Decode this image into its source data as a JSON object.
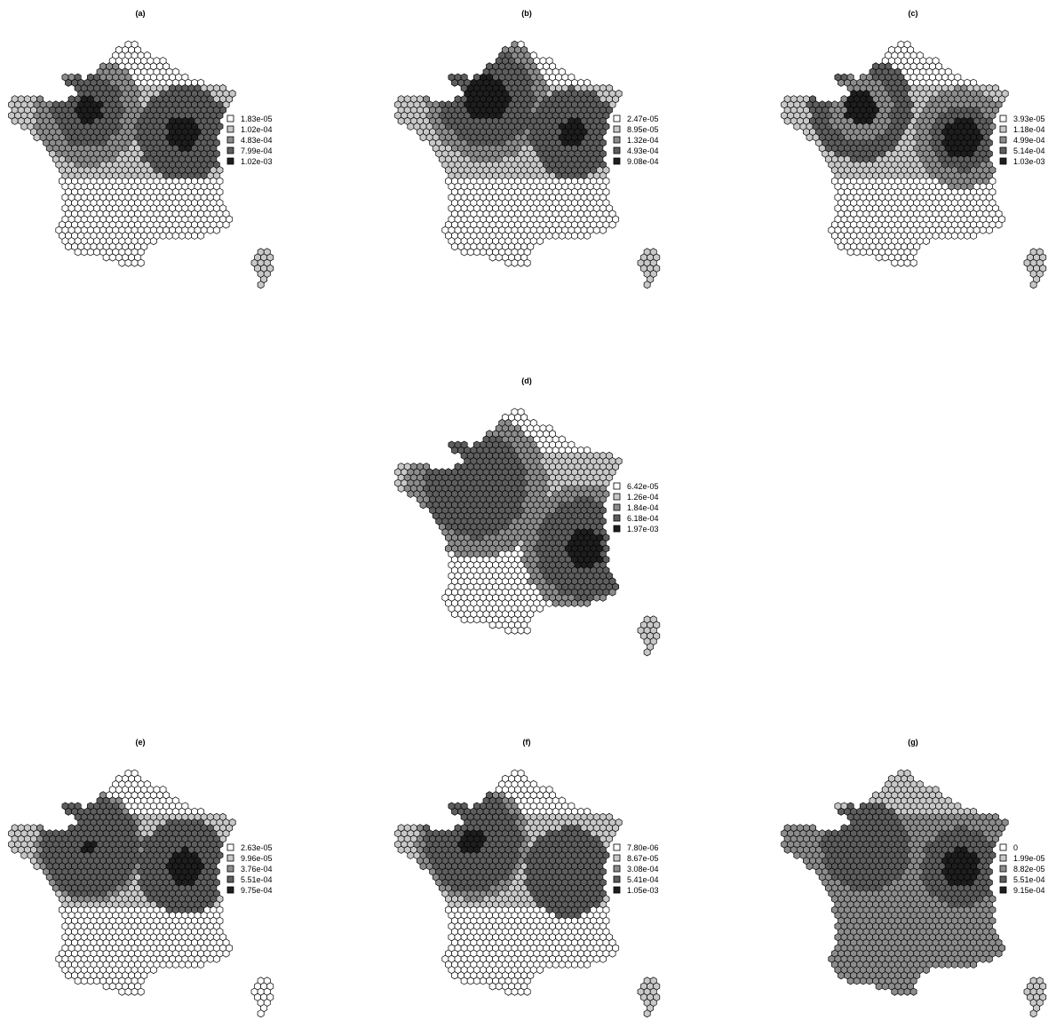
{
  "palette": {
    "class_1": "#ffffff",
    "class_2": "#c8c8c8",
    "class_3": "#8c8c8c",
    "class_4": "#5e5e5e",
    "class_5": "#1e1e1e",
    "outline": "#000000"
  },
  "panels": [
    {
      "id": "a",
      "title": "(a)",
      "legend": [
        "1.83e-05",
        "1.02e-04",
        "4.83e-04",
        "7.99e-04",
        "1.02e-03"
      ],
      "hotspots": [
        {
          "lon": 0.2,
          "lat": 46.7,
          "level": 5,
          "radius_deg": 0.55,
          "halo": [
            4,
            1.45
          ],
          "mid": [
            3,
            2.2
          ]
        },
        {
          "lon": 5.6,
          "lat": 45.8,
          "level": 5,
          "radius_deg": 0.65,
          "halo": [
            4,
            1.9
          ],
          "mid": [
            3,
            1.9
          ]
        }
      ],
      "background_level": 2,
      "north_level": 1,
      "corsica_level": 2
    },
    {
      "id": "b",
      "title": "(b)",
      "legend": [
        "2.47e-05",
        "8.95e-05",
        "1.32e-04",
        "4.93e-04",
        "9.08e-04"
      ],
      "hotspots": [
        {
          "lon": 0.9,
          "lat": 47.2,
          "level": 5,
          "radius_deg": 0.9,
          "halo": [
            4,
            1.95
          ],
          "mid": [
            3,
            2.5
          ]
        },
        {
          "lon": 5.8,
          "lat": 45.8,
          "level": 5,
          "radius_deg": 0.55,
          "halo": [
            4,
            1.8
          ],
          "mid": [
            3,
            1.8
          ]
        }
      ],
      "background_level": 2,
      "north_level": 1,
      "corsica_level": 2
    },
    {
      "id": "c",
      "title": "(c)",
      "legend": [
        "3.93e-05",
        "1.18e-04",
        "4.99e-04",
        "5.14e-04",
        "1.03e-03"
      ],
      "hotspots": [
        {
          "lon": 0.2,
          "lat": 46.8,
          "level": 5,
          "radius_deg": 0.65,
          "halo": [
            3,
            1.3
          ],
          "mid": [
            4,
            2.1
          ]
        },
        {
          "lon": 6.0,
          "lat": 45.6,
          "level": 5,
          "radius_deg": 0.8,
          "halo": [
            4,
            1.3
          ],
          "mid": [
            3,
            2.0
          ]
        }
      ],
      "background_level": 2,
      "north_level": 1,
      "corsica_level": 2
    },
    {
      "id": "d",
      "title": "(d)",
      "legend": [
        "6.42e-05",
        "1.26e-04",
        "1.84e-04",
        "6.18e-04",
        "1.97e-03"
      ],
      "hotspots": [
        {
          "lon": 6.5,
          "lat": 43.9,
          "level": 5,
          "radius_deg": 0.75,
          "halo": [
            4,
            2.0
          ],
          "mid": [
            3,
            2.6
          ]
        },
        {
          "lon": 0.3,
          "lat": 46.4,
          "level": 4,
          "radius_deg": 2.1,
          "halo": [
            4,
            2.1
          ],
          "mid": [
            3,
            2.9
          ]
        }
      ],
      "background_level": 2,
      "north_level": 1,
      "corsica_level": 2
    },
    {
      "id": "e",
      "title": "(e)",
      "legend": [
        "2.63e-05",
        "9.96e-05",
        "3.76e-04",
        "5.51e-04",
        "9.75e-04"
      ],
      "hotspots": [
        {
          "lon": 0.3,
          "lat": 46.4,
          "level": 5,
          "radius_deg": 0.3,
          "halo": [
            4,
            2.0
          ],
          "mid": [
            3,
            2.2
          ]
        },
        {
          "lon": 5.7,
          "lat": 45.6,
          "level": 5,
          "radius_deg": 0.7,
          "halo": [
            4,
            1.9
          ],
          "mid": [
            3,
            1.9
          ]
        }
      ],
      "background_level": 2,
      "north_level": 1,
      "corsica_level": 1
    },
    {
      "id": "f",
      "title": "(f)",
      "legend": [
        "7.80e-06",
        "8.67e-05",
        "3.08e-04",
        "5.41e-04",
        "1.05e-03"
      ],
      "hotspots": [
        {
          "lon": 0.1,
          "lat": 46.6,
          "level": 5,
          "radius_deg": 0.5,
          "halo": [
            4,
            2.0
          ],
          "mid": [
            3,
            2.3
          ]
        },
        {
          "lon": 5.6,
          "lat": 45.4,
          "level": 4,
          "radius_deg": 1.8,
          "halo": [
            4,
            1.8
          ],
          "mid": [
            3,
            1.8
          ]
        }
      ],
      "background_level": 2,
      "north_level": 1,
      "corsica_level": 2
    },
    {
      "id": "g",
      "title": "(g)",
      "legend": [
        "0",
        "1.99e-05",
        "8.82e-05",
        "5.51e-04",
        "9.15e-04"
      ],
      "hotspots": [
        {
          "lon": 5.9,
          "lat": 45.6,
          "level": 5,
          "radius_deg": 0.75,
          "halo": [
            4,
            1.6
          ],
          "mid": [
            4,
            1.6
          ]
        },
        {
          "lon": 0.5,
          "lat": 46.4,
          "level": 4,
          "radius_deg": 1.8,
          "halo": [
            4,
            1.8
          ],
          "mid": [
            4,
            1.8
          ]
        }
      ],
      "background_level": 3,
      "north_level": 2,
      "corsica_level": 2
    }
  ]
}
